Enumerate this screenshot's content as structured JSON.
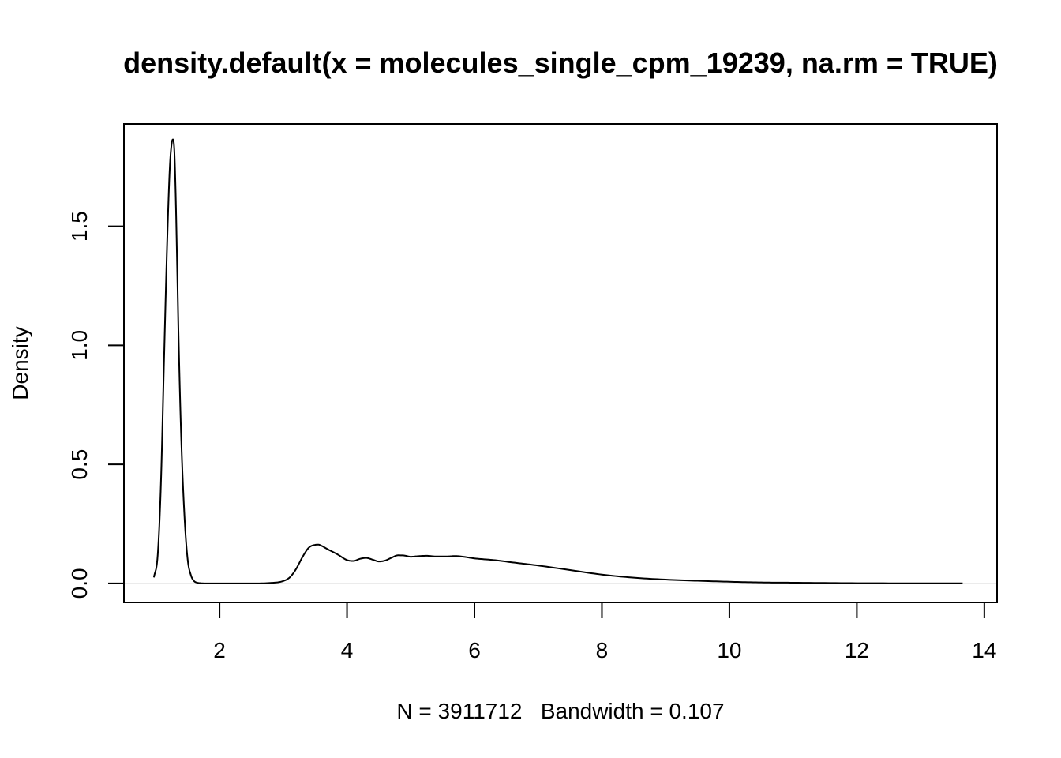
{
  "chart_data": {
    "type": "line",
    "title": "density.default(x = molecules_single_cpm_19239, na.rm = TRUE)",
    "xlabel": "N = 3911712   Bandwidth = 0.107",
    "ylabel": "Density",
    "xlim": [
      0.5,
      14.2
    ],
    "ylim": [
      -0.08,
      1.93
    ],
    "x_ticks": [
      2,
      4,
      6,
      8,
      10,
      12,
      14
    ],
    "x_tick_labels": [
      "2",
      "4",
      "6",
      "8",
      "10",
      "12",
      "14"
    ],
    "y_ticks": [
      0.0,
      0.5,
      1.0,
      1.5
    ],
    "y_tick_labels": [
      "0.0",
      "0.5",
      "1.0",
      "1.5"
    ],
    "grid": false,
    "zero_line": true,
    "series": [
      {
        "color": "#000000",
        "x": [
          0.97,
          1.03,
          1.08,
          1.13,
          1.18,
          1.22,
          1.25,
          1.27,
          1.29,
          1.31,
          1.33,
          1.36,
          1.4,
          1.45,
          1.5,
          1.55,
          1.6,
          1.65,
          1.7,
          1.8,
          2.0,
          2.5,
          2.8,
          3.0,
          3.1,
          3.2,
          3.3,
          3.4,
          3.5,
          3.55,
          3.6,
          3.7,
          3.85,
          4.0,
          4.1,
          4.2,
          4.3,
          4.4,
          4.5,
          4.6,
          4.7,
          4.8,
          4.9,
          5.0,
          5.1,
          5.25,
          5.4,
          5.55,
          5.7,
          5.85,
          6.0,
          6.3,
          6.6,
          7.0,
          7.5,
          8.0,
          8.5,
          9.0,
          9.5,
          10.0,
          10.5,
          11.0,
          12.0,
          13.0,
          13.66
        ],
        "y": [
          0.025,
          0.12,
          0.42,
          0.95,
          1.45,
          1.75,
          1.85,
          1.865,
          1.82,
          1.65,
          1.4,
          1.0,
          0.6,
          0.28,
          0.1,
          0.035,
          0.01,
          0.003,
          0.001,
          0.0,
          0.0,
          0.0,
          0.002,
          0.01,
          0.025,
          0.06,
          0.11,
          0.15,
          0.162,
          0.163,
          0.158,
          0.143,
          0.122,
          0.098,
          0.094,
          0.103,
          0.107,
          0.1,
          0.092,
          0.096,
          0.108,
          0.118,
          0.117,
          0.112,
          0.114,
          0.116,
          0.113,
          0.113,
          0.115,
          0.111,
          0.105,
          0.098,
          0.088,
          0.075,
          0.056,
          0.037,
          0.024,
          0.016,
          0.011,
          0.007,
          0.004,
          0.003,
          0.001,
          0.0005,
          0.0003
        ]
      }
    ]
  }
}
